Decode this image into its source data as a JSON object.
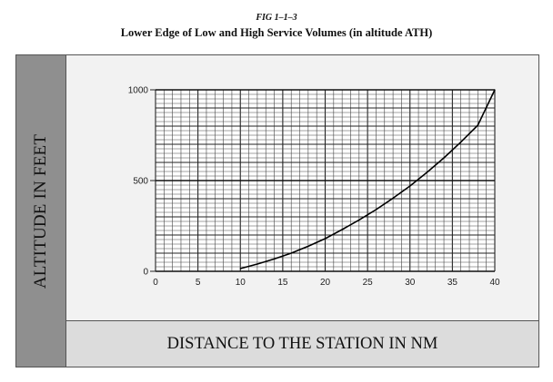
{
  "figure": {
    "label": "FIG 1–1–3",
    "title": "Lower Edge of Low and High Service Volumes (in altitude ATH)"
  },
  "chart_data": {
    "type": "line",
    "title": "Lower Edge of Low and High Service Volumes (in altitude ATH)",
    "xlabel": "DISTANCE TO THE STATION IN NM",
    "ylabel": "ALTITUDE IN FEET",
    "xlim": [
      0,
      40
    ],
    "ylim": [
      0,
      1000
    ],
    "x_ticks": [
      "0",
      "5",
      "10",
      "15",
      "20",
      "25",
      "30",
      "35",
      "40"
    ],
    "y_ticks": [
      "0",
      "500",
      "1000"
    ],
    "grid": true,
    "series": [
      {
        "color": "#000000",
        "x": [
          10,
          12,
          14,
          16,
          18,
          20,
          22,
          24,
          26,
          28,
          30,
          32,
          34,
          36,
          38,
          40
        ],
        "y": [
          15,
          40,
          68,
          100,
          138,
          180,
          230,
          283,
          340,
          403,
          470,
          545,
          625,
          712,
          805,
          1000
        ]
      }
    ]
  }
}
